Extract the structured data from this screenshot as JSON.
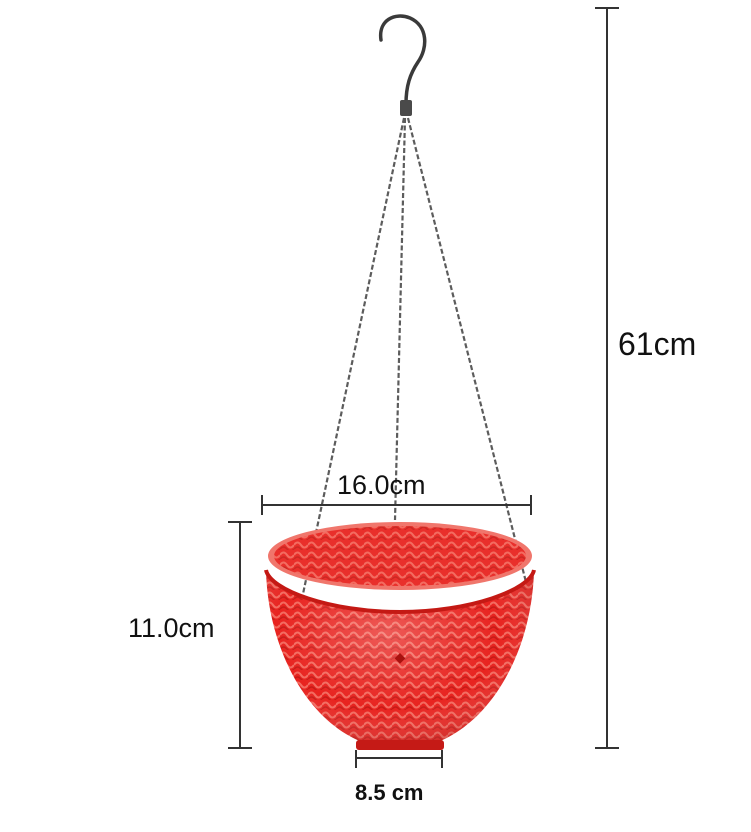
{
  "product": {
    "color": "#e8231f",
    "chain_color": "#5a5a5a",
    "hook_color": "#3a3a3a"
  },
  "dimensions": {
    "total_height": "61cm",
    "top_diameter": "16.0cm",
    "basket_height": "11.0cm",
    "base_diameter": "8.5 cm"
  },
  "icons": {
    "hook": "hook-icon",
    "basket": "hanging-basket-icon"
  }
}
